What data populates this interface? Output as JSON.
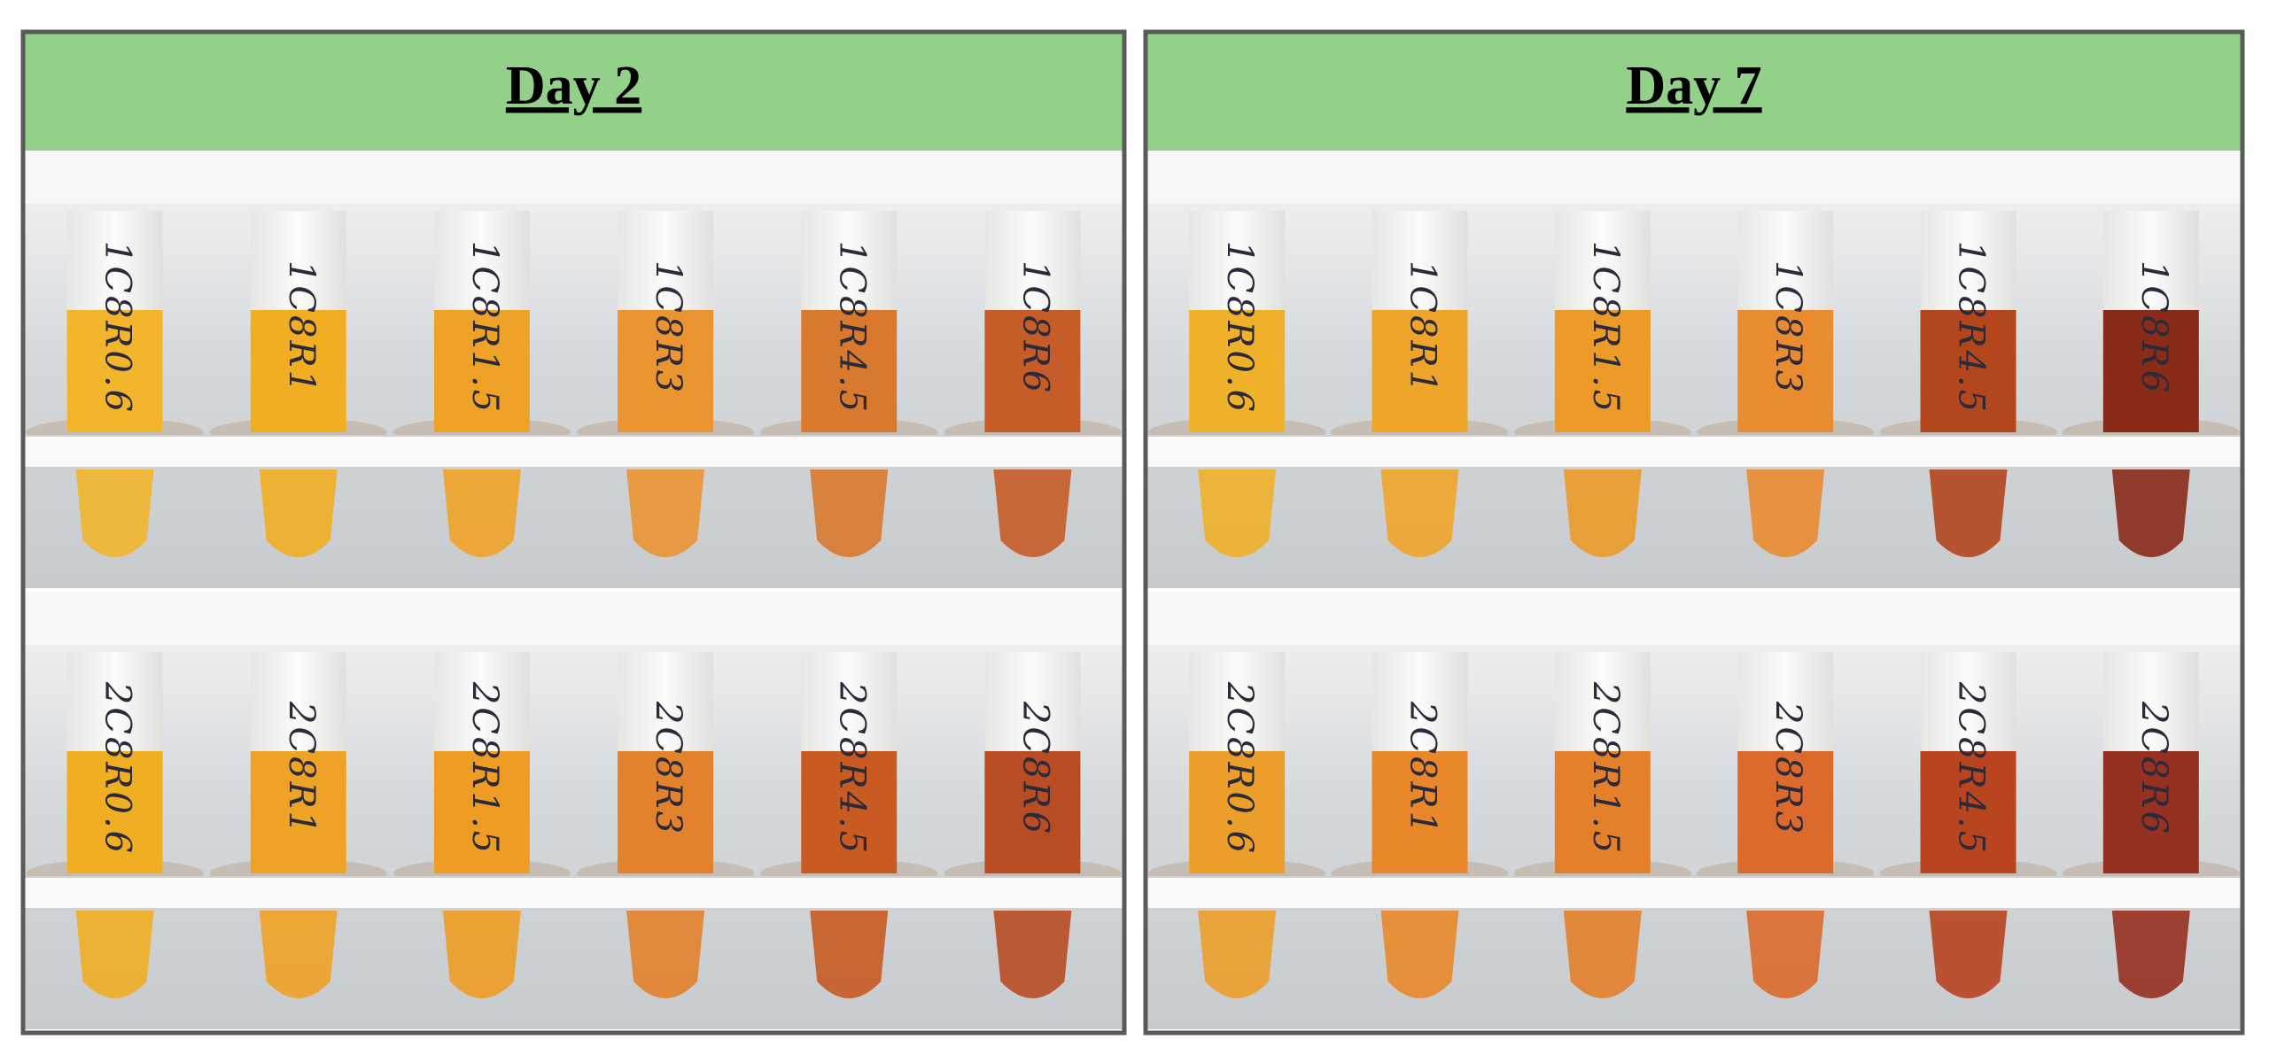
{
  "panels": [
    {
      "title": "Day 2",
      "rows": [
        {
          "tubes": [
            "1C8R0.6",
            "1C8R1",
            "1C8R1.5",
            "1C8R3",
            "1C8R4.5",
            "1C8R6"
          ]
        },
        {
          "tubes": [
            "2C8R0.6",
            "2C8R1",
            "2C8R1.5",
            "2C8R3",
            "2C8R4.5",
            "2C8R6"
          ]
        }
      ]
    },
    {
      "title": "Day 7",
      "rows": [
        {
          "tubes": [
            "1C8R0.6",
            "1C8R1",
            "1C8R1.5",
            "1C8R3",
            "1C8R4.5",
            "1C8R6"
          ]
        },
        {
          "tubes": [
            "2C8R0.6",
            "2C8R1",
            "2C8R1.5",
            "2C8R3",
            "2C8R4.5",
            "2C8R6"
          ]
        }
      ]
    }
  ]
}
